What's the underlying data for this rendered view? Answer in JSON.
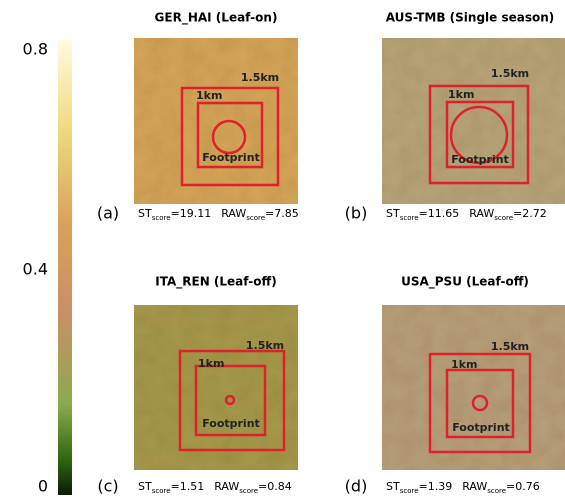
{
  "colorbar": {
    "ticks": [
      "0.8",
      "0.4",
      "0"
    ]
  },
  "panels": [
    {
      "title": "GER_HAI (Leaf-on)",
      "letter": "(a)",
      "outer_label": "1.5km",
      "inner_label": "1km",
      "footprint_label": "Footprint",
      "st": {
        "label": "ST",
        "sub": "score",
        "value": "=19.11"
      },
      "raw": {
        "label": "RAW",
        "sub": "score",
        "value": "=7.85"
      }
    },
    {
      "title": "AUS-TMB (Single season)",
      "letter": "(b)",
      "outer_label": "1.5km",
      "inner_label": "1km",
      "footprint_label": "Footprint",
      "st": {
        "label": "ST",
        "sub": "score",
        "value": "=11.65"
      },
      "raw": {
        "label": "RAW",
        "sub": "score",
        "value": "=2.72"
      }
    },
    {
      "title": "ITA_REN (Leaf-off)",
      "letter": "(c)",
      "outer_label": "1.5km",
      "inner_label": "1km",
      "footprint_label": "Footprint",
      "st": {
        "label": "ST",
        "sub": "score",
        "value": "=1.51"
      },
      "raw": {
        "label": "RAW",
        "sub": "score",
        "value": "=0.84"
      }
    },
    {
      "title": "USA_PSU (Leaf-off)",
      "letter": "(d)",
      "outer_label": "1.5km",
      "inner_label": "1km",
      "footprint_label": "Footprint",
      "st": {
        "label": "ST",
        "sub": "score",
        "value": "=1.39"
      },
      "raw": {
        "label": "RAW",
        "sub": "score",
        "value": "=0.76"
      }
    }
  ]
}
